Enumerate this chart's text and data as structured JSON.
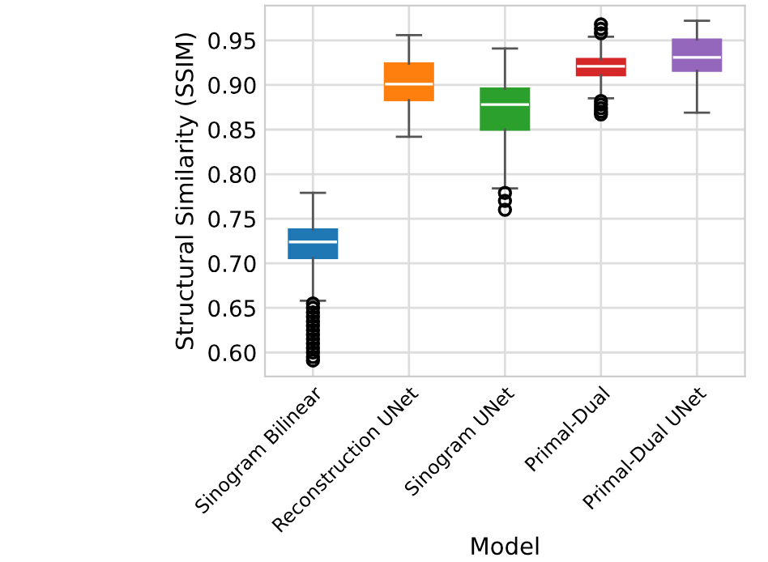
{
  "chart_data": {
    "type": "box",
    "xlabel": "Model",
    "ylabel": "Structural Similarity (SSIM)",
    "categories": [
      "Sinogram Bilinear",
      "Reconstruction UNet",
      "Sinogram UNet",
      "Primal-Dual",
      "Primal-Dual UNet"
    ],
    "colors": [
      "#1f77b4",
      "#ff7f0e",
      "#2ca02c",
      "#d62728",
      "#9467bd"
    ],
    "boxes": [
      {
        "low": 0.658,
        "q1": 0.706,
        "median": 0.724,
        "q3": 0.738,
        "high": 0.779,
        "outliers": [
          0.655,
          0.65,
          0.645,
          0.64,
          0.635,
          0.63,
          0.625,
          0.62,
          0.615,
          0.61,
          0.605,
          0.6,
          0.595,
          0.591
        ]
      },
      {
        "low": 0.842,
        "q1": 0.883,
        "median": 0.901,
        "q3": 0.924,
        "high": 0.956
      },
      {
        "low": 0.784,
        "q1": 0.85,
        "median": 0.878,
        "q3": 0.896,
        "high": 0.941,
        "outliers": [
          0.779,
          0.77,
          0.76
        ]
      },
      {
        "low": 0.885,
        "q1": 0.911,
        "median": 0.921,
        "q3": 0.929,
        "high": 0.954,
        "outliers": [
          0.968,
          0.963,
          0.958,
          0.882,
          0.878,
          0.874,
          0.87,
          0.867
        ]
      },
      {
        "low": 0.869,
        "q1": 0.916,
        "median": 0.931,
        "q3": 0.951,
        "high": 0.972
      }
    ],
    "ylim": [
      0.573,
      0.989
    ],
    "yticks": [
      {
        "value": 0.6,
        "label": "0.60"
      },
      0.65,
      {
        "value": 0.7,
        "label": "0.70"
      },
      0.75,
      {
        "value": 0.8,
        "label": "0.80"
      },
      0.85,
      {
        "value": 0.9,
        "label": "0.90"
      },
      0.95
    ],
    "grid": true
  }
}
